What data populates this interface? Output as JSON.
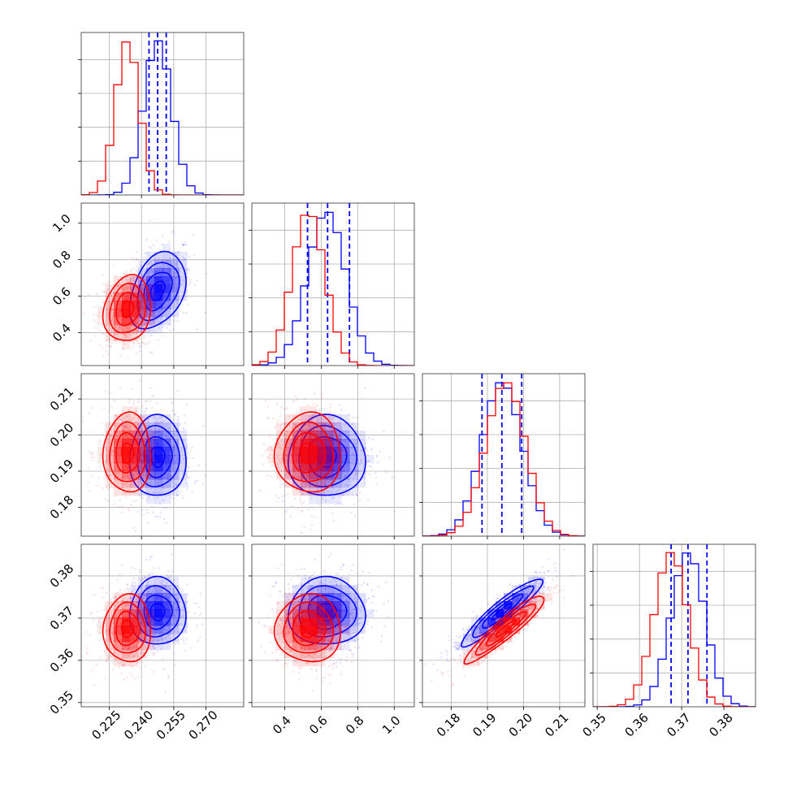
{
  "chart_data": {
    "type": "corner",
    "title": "",
    "grid": true,
    "parameters": [
      {
        "range": [
          0.212,
          0.2875
        ],
        "ticks": [
          0.225,
          0.24,
          0.255,
          0.27
        ],
        "tick_labels": [
          "0.225",
          "0.240",
          "0.255",
          "0.270"
        ]
      },
      {
        "range": [
          0.22,
          1.11
        ],
        "ticks": [
          0.4,
          0.6,
          0.8,
          1.0
        ],
        "tick_labels": [
          "0.4",
          "0.6",
          "0.8",
          "1.0"
        ]
      },
      {
        "range": [
          0.172,
          0.217
        ],
        "ticks": [
          0.18,
          0.19,
          0.2,
          0.21
        ],
        "tick_labels": [
          "0.18",
          "0.19",
          "0.20",
          "0.21"
        ]
      },
      {
        "range": [
          0.349,
          0.3875
        ],
        "ticks": [
          0.35,
          0.36,
          0.37,
          0.38
        ],
        "tick_labels": [
          "0.35",
          "0.36",
          "0.37",
          "0.38"
        ]
      }
    ],
    "series": [
      {
        "color": "#0000ff",
        "means": [
          0.2475,
          0.63,
          0.194,
          0.3715
        ],
        "sds": [
          0.0065,
          0.105,
          0.0056,
          0.004
        ],
        "quantiles": [
          [
            0.2435,
            0.2475,
            0.2515
          ],
          [
            0.525,
            0.635,
            0.755
          ],
          [
            0.1885,
            0.194,
            0.1995
          ],
          [
            0.3675,
            0.3715,
            0.376
          ]
        ],
        "correlations": [
          [
            0,
            1,
            0.35
          ],
          [
            2,
            3,
            0.93
          ]
        ]
      },
      {
        "color": "#ff0000",
        "means": [
          0.2335,
          0.53,
          0.195,
          0.3675
        ],
        "sds": [
          0.0055,
          0.09,
          0.0055,
          0.004
        ],
        "quantiles": [],
        "correlations": [
          [
            0,
            1,
            0.15
          ],
          [
            2,
            3,
            0.93
          ]
        ]
      }
    ]
  }
}
